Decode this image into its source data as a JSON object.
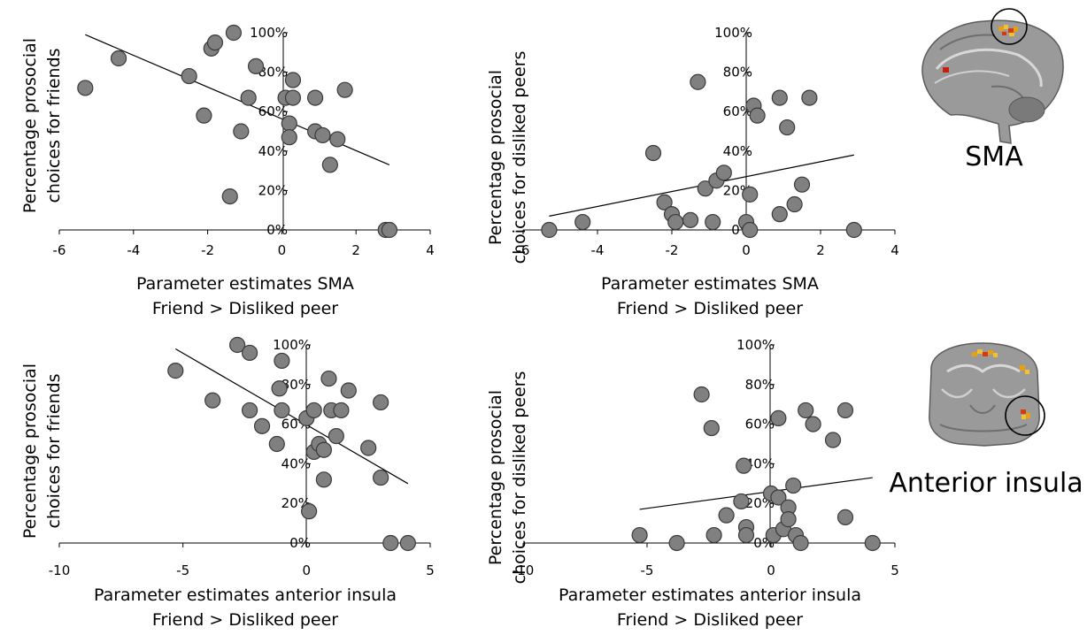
{
  "chart_data": [
    {
      "type": "scatter",
      "xlabel": [
        "Parameter estimates SMA",
        "Friend > Disliked peer"
      ],
      "ylabel": [
        "Percentage prosocial",
        "choices for friends"
      ],
      "xlim": [
        -6,
        4
      ],
      "ylim": [
        0,
        100
      ],
      "xticks": [
        -6,
        -4,
        -2,
        0,
        2,
        4
      ],
      "yticks": [
        "0%",
        "20%",
        "40%",
        "60%",
        "80%",
        "100%"
      ],
      "points": [
        {
          "x": -5.3,
          "y": 72
        },
        {
          "x": -4.4,
          "y": 87
        },
        {
          "x": -2.5,
          "y": 78
        },
        {
          "x": -2.1,
          "y": 58
        },
        {
          "x": -1.9,
          "y": 92
        },
        {
          "x": -1.8,
          "y": 95
        },
        {
          "x": -1.3,
          "y": 100
        },
        {
          "x": -0.7,
          "y": 83
        },
        {
          "x": -0.9,
          "y": 67
        },
        {
          "x": -1.1,
          "y": 50
        },
        {
          "x": -1.4,
          "y": 17
        },
        {
          "x": 0.1,
          "y": 67
        },
        {
          "x": 0.3,
          "y": 67
        },
        {
          "x": 0.3,
          "y": 76
        },
        {
          "x": 0.2,
          "y": 54
        },
        {
          "x": 0.2,
          "y": 47
        },
        {
          "x": 0.9,
          "y": 67
        },
        {
          "x": 0.9,
          "y": 50
        },
        {
          "x": 1.1,
          "y": 48
        },
        {
          "x": 1.3,
          "y": 33
        },
        {
          "x": 1.5,
          "y": 46
        },
        {
          "x": 1.7,
          "y": 71
        },
        {
          "x": 2.8,
          "y": 0
        },
        {
          "x": 2.9,
          "y": 0
        }
      ],
      "trend": [
        {
          "x": -5.3,
          "y": 99
        },
        {
          "x": 2.9,
          "y": 33
        }
      ]
    },
    {
      "type": "scatter",
      "xlabel": [
        "Parameter estimates SMA",
        "Friend > Disliked peer"
      ],
      "ylabel": [
        "Percentage prosocial",
        "choices for disliked peers"
      ],
      "xlim": [
        -6,
        4
      ],
      "ylim": [
        0,
        100
      ],
      "xticks": [
        -6,
        -4,
        -2,
        0,
        2,
        4
      ],
      "yticks": [
        "0%",
        "20%",
        "40%",
        "60%",
        "80%",
        "100%"
      ],
      "points": [
        {
          "x": -5.3,
          "y": 0
        },
        {
          "x": -4.4,
          "y": 4
        },
        {
          "x": -2.5,
          "y": 39
        },
        {
          "x": -2.2,
          "y": 14
        },
        {
          "x": -2.0,
          "y": 8
        },
        {
          "x": -1.9,
          "y": 4
        },
        {
          "x": -1.5,
          "y": 5
        },
        {
          "x": -1.3,
          "y": 75
        },
        {
          "x": -1.1,
          "y": 21
        },
        {
          "x": -0.8,
          "y": 25
        },
        {
          "x": -0.6,
          "y": 29
        },
        {
          "x": -0.9,
          "y": 4
        },
        {
          "x": 0.0,
          "y": 4
        },
        {
          "x": 0.1,
          "y": 0
        },
        {
          "x": 0.2,
          "y": 63
        },
        {
          "x": 0.3,
          "y": 58
        },
        {
          "x": 0.1,
          "y": 18
        },
        {
          "x": 0.9,
          "y": 67
        },
        {
          "x": 0.9,
          "y": 8
        },
        {
          "x": 1.1,
          "y": 52
        },
        {
          "x": 1.3,
          "y": 13
        },
        {
          "x": 1.5,
          "y": 23
        },
        {
          "x": 1.7,
          "y": 67
        },
        {
          "x": 2.9,
          "y": 0
        }
      ],
      "trend": [
        {
          "x": -5.3,
          "y": 7
        },
        {
          "x": 2.9,
          "y": 38
        }
      ]
    },
    {
      "type": "scatter",
      "xlabel": [
        "Parameter estimates anterior insula",
        "Friend > Disliked peer"
      ],
      "ylabel": [
        "Percentage prosocial",
        "choices for friends"
      ],
      "xlim": [
        -10,
        5
      ],
      "ylim": [
        0,
        100
      ],
      "xticks": [
        -10,
        -5,
        0,
        5
      ],
      "yticks": [
        "0%",
        "20%",
        "40%",
        "60%",
        "80%",
        "100%"
      ],
      "points": [
        {
          "x": -5.3,
          "y": 87
        },
        {
          "x": -3.8,
          "y": 72
        },
        {
          "x": -2.8,
          "y": 100
        },
        {
          "x": -2.3,
          "y": 96
        },
        {
          "x": -2.3,
          "y": 67
        },
        {
          "x": -1.8,
          "y": 59
        },
        {
          "x": -1.2,
          "y": 50
        },
        {
          "x": -1.1,
          "y": 78
        },
        {
          "x": -1.0,
          "y": 92
        },
        {
          "x": -1.0,
          "y": 67
        },
        {
          "x": 0.0,
          "y": 63
        },
        {
          "x": 0.1,
          "y": 16
        },
        {
          "x": 0.3,
          "y": 67
        },
        {
          "x": 0.3,
          "y": 46
        },
        {
          "x": 0.5,
          "y": 50
        },
        {
          "x": 0.7,
          "y": 47
        },
        {
          "x": 0.7,
          "y": 32
        },
        {
          "x": 0.9,
          "y": 83
        },
        {
          "x": 1.0,
          "y": 67
        },
        {
          "x": 1.2,
          "y": 54
        },
        {
          "x": 1.4,
          "y": 67
        },
        {
          "x": 1.7,
          "y": 77
        },
        {
          "x": 2.5,
          "y": 48
        },
        {
          "x": 3.0,
          "y": 71
        },
        {
          "x": 3.0,
          "y": 33
        },
        {
          "x": 3.4,
          "y": 0
        },
        {
          "x": 4.1,
          "y": 0
        }
      ],
      "trend": [
        {
          "x": -5.3,
          "y": 98
        },
        {
          "x": 4.1,
          "y": 30
        }
      ]
    },
    {
      "type": "scatter",
      "xlabel": [
        "Parameter estimates anterior insula",
        "Friend > Disliked peer"
      ],
      "ylabel": [
        "Percentage prosocial",
        "choices for disliked peers"
      ],
      "xlim": [
        -10,
        5
      ],
      "ylim": [
        0,
        100
      ],
      "xticks": [
        -10,
        -5,
        0,
        5
      ],
      "yticks": [
        "0%",
        "20%",
        "40%",
        "60%",
        "80%",
        "100%"
      ],
      "points": [
        {
          "x": -5.3,
          "y": 4
        },
        {
          "x": -3.8,
          "y": 0
        },
        {
          "x": -2.8,
          "y": 75
        },
        {
          "x": -2.4,
          "y": 58
        },
        {
          "x": -2.3,
          "y": 4
        },
        {
          "x": -1.8,
          "y": 14
        },
        {
          "x": -1.2,
          "y": 21
        },
        {
          "x": -1.1,
          "y": 39
        },
        {
          "x": -1.0,
          "y": 8
        },
        {
          "x": -1.0,
          "y": 4
        },
        {
          "x": 0.0,
          "y": 25
        },
        {
          "x": 0.1,
          "y": 4
        },
        {
          "x": 0.3,
          "y": 63
        },
        {
          "x": 0.3,
          "y": 23
        },
        {
          "x": 0.5,
          "y": 7
        },
        {
          "x": 0.7,
          "y": 18
        },
        {
          "x": 0.7,
          "y": 12
        },
        {
          "x": 0.9,
          "y": 29
        },
        {
          "x": 1.0,
          "y": 4
        },
        {
          "x": 1.2,
          "y": 0
        },
        {
          "x": 1.4,
          "y": 67
        },
        {
          "x": 1.7,
          "y": 60
        },
        {
          "x": 2.5,
          "y": 52
        },
        {
          "x": 3.0,
          "y": 67
        },
        {
          "x": 3.0,
          "y": 13
        },
        {
          "x": 4.1,
          "y": 0
        }
      ],
      "trend": [
        {
          "x": -5.3,
          "y": 17
        },
        {
          "x": 4.1,
          "y": 33
        }
      ]
    }
  ],
  "brain_images": [
    {
      "label": "SMA",
      "view": "sagittal",
      "highlight_color": "#e8a010",
      "circle_color": "#000000"
    },
    {
      "label": "Anterior insula",
      "view": "coronal",
      "highlight_color": "#e8a010",
      "circle_color": "#000000"
    }
  ]
}
